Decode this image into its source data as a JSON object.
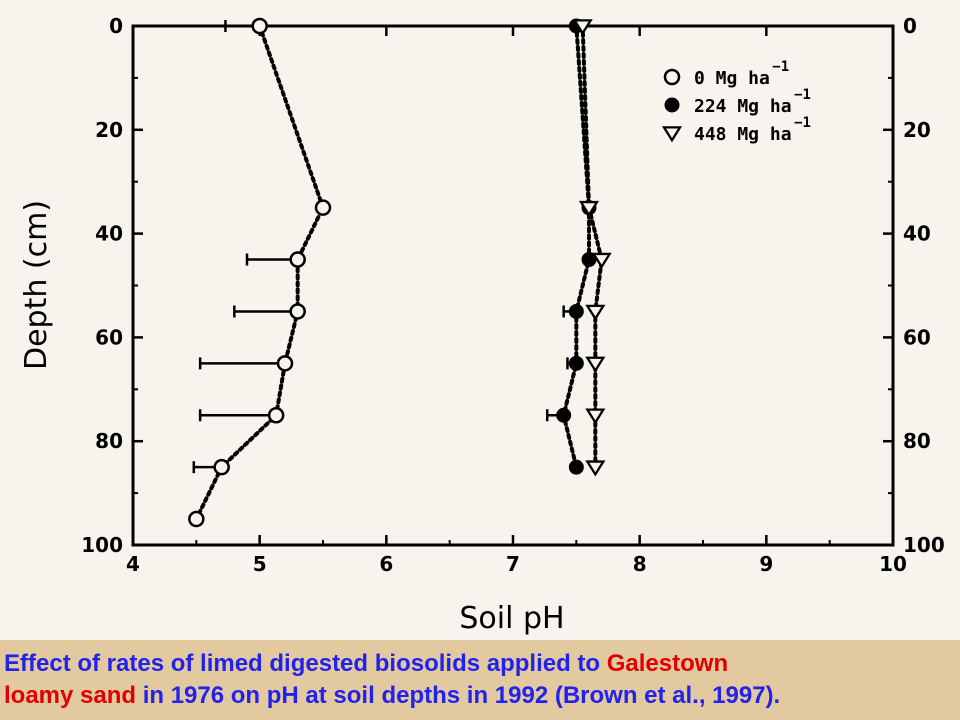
{
  "chart_data": {
    "type": "scatter",
    "xlabel": "Soil pH",
    "ylabel": "Depth (cm)",
    "xlim": [
      4,
      10
    ],
    "ylim": [
      0,
      100
    ],
    "y_inverted": true,
    "x_ticks": [
      4,
      5,
      6,
      7,
      8,
      9,
      10
    ],
    "y_ticks": [
      0,
      20,
      40,
      60,
      80,
      100
    ],
    "right_y_ticks": [
      0,
      20,
      40,
      60,
      80,
      100
    ],
    "grid": false,
    "legend_position": "top-right",
    "series": [
      {
        "name": "0 Mg ha",
        "name_sup": "−1",
        "marker": "open-circle",
        "points": [
          {
            "ph": 5.0,
            "depth": 0,
            "err": 0.27
          },
          {
            "ph": 5.5,
            "depth": 35,
            "err": 0
          },
          {
            "ph": 5.3,
            "depth": 45,
            "err": 0.4
          },
          {
            "ph": 5.3,
            "depth": 55,
            "err": 0.5
          },
          {
            "ph": 5.2,
            "depth": 65,
            "err": 0.67
          },
          {
            "ph": 5.13,
            "depth": 75,
            "err": 0.6
          },
          {
            "ph": 4.7,
            "depth": 85,
            "err": 0.22
          },
          {
            "ph": 4.5,
            "depth": 95,
            "err": 0
          }
        ]
      },
      {
        "name": "224 Mg ha",
        "name_sup": "−1",
        "marker": "filled-circle",
        "points": [
          {
            "ph": 7.5,
            "depth": 0,
            "err": 0
          },
          {
            "ph": 7.6,
            "depth": 35,
            "err": 0
          },
          {
            "ph": 7.6,
            "depth": 45,
            "err": 0
          },
          {
            "ph": 7.5,
            "depth": 55,
            "err": 0.1
          },
          {
            "ph": 7.5,
            "depth": 65,
            "err": 0.07
          },
          {
            "ph": 7.4,
            "depth": 75,
            "err": 0.13
          },
          {
            "ph": 7.5,
            "depth": 85,
            "err": 0
          }
        ]
      },
      {
        "name": "448 Mg ha",
        "name_sup": "−1",
        "marker": "open-triangle-down",
        "points": [
          {
            "ph": 7.55,
            "depth": 0,
            "err": 0
          },
          {
            "ph": 7.6,
            "depth": 35,
            "err": 0
          },
          {
            "ph": 7.7,
            "depth": 45,
            "err": 0
          },
          {
            "ph": 7.65,
            "depth": 55,
            "err": 0
          },
          {
            "ph": 7.65,
            "depth": 65,
            "err": 0
          },
          {
            "ph": 7.65,
            "depth": 75,
            "err": 0
          },
          {
            "ph": 7.65,
            "depth": 85,
            "err": 0
          }
        ]
      }
    ]
  },
  "caption": {
    "part1": "Effect of rates of limed digested biosolids applied to ",
    "highlight1": "Galestown",
    "highlight2": "loamy sand",
    "part2": " in 1976 on pH at soil depths in 1992 (Brown et al., 1997).",
    "text_color": "#2222ee",
    "highlight_color": "#e00000"
  }
}
